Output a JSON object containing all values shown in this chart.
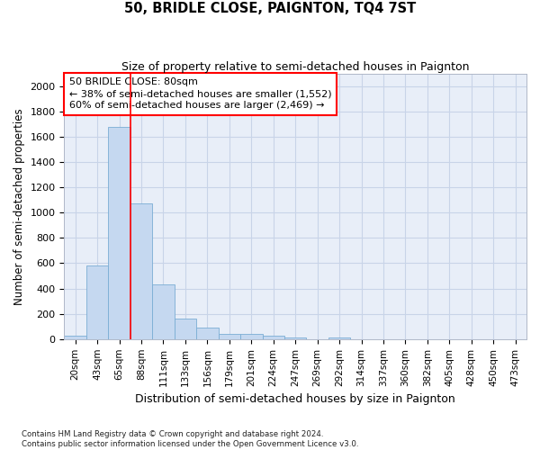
{
  "title": "50, BRIDLE CLOSE, PAIGNTON, TQ4 7ST",
  "subtitle": "Size of property relative to semi-detached houses in Paignton",
  "xlabel": "Distribution of semi-detached houses by size in Paignton",
  "ylabel": "Number of semi-detached properties",
  "footer_line1": "Contains HM Land Registry data © Crown copyright and database right 2024.",
  "footer_line2": "Contains public sector information licensed under the Open Government Licence v3.0.",
  "bar_labels": [
    "20sqm",
    "43sqm",
    "65sqm",
    "88sqm",
    "111sqm",
    "133sqm",
    "156sqm",
    "179sqm",
    "201sqm",
    "224sqm",
    "247sqm",
    "269sqm",
    "292sqm",
    "314sqm",
    "337sqm",
    "360sqm",
    "382sqm",
    "405sqm",
    "428sqm",
    "450sqm",
    "473sqm"
  ],
  "bar_values": [
    30,
    580,
    1680,
    1075,
    430,
    160,
    90,
    40,
    40,
    25,
    15,
    0,
    15,
    0,
    0,
    0,
    0,
    0,
    0,
    0,
    0
  ],
  "bar_color": "#c5d8f0",
  "bar_edgecolor": "#7aadd4",
  "grid_color": "#c8d4e8",
  "background_color": "#e8eef8",
  "vline_x_index": 2.5,
  "vline_color": "red",
  "annotation_box_text": "50 BRIDLE CLOSE: 80sqm\n← 38% of semi-detached houses are smaller (1,552)\n60% of semi-detached houses are larger (2,469) →",
  "annotation_fontsize": 8.0,
  "ylim": [
    0,
    2100
  ],
  "yticks": [
    0,
    200,
    400,
    600,
    800,
    1000,
    1200,
    1400,
    1600,
    1800,
    2000
  ],
  "title_fontsize": 10.5,
  "subtitle_fontsize": 9,
  "xlabel_fontsize": 9,
  "ylabel_fontsize": 8.5,
  "tick_fontsize": 8,
  "xtick_fontsize": 7.5
}
